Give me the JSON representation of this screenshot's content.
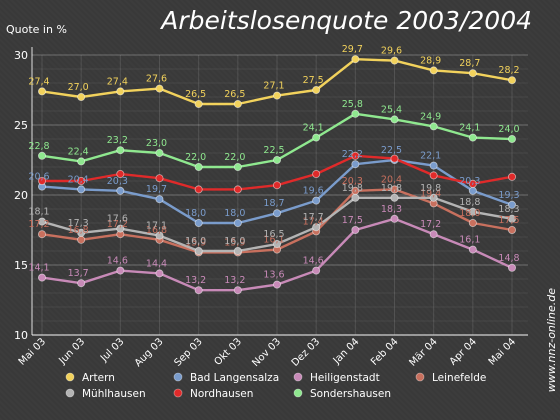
{
  "chart_data": {
    "type": "line",
    "title": "Arbeitslosenquote 2003/2004",
    "ylabel": "Quote in %",
    "ylim": [
      10,
      30
    ],
    "yticks": [
      "10",
      "15",
      "20",
      "25",
      "30"
    ],
    "grid": true,
    "legend_position": "bottom",
    "source": "www.nnz-online.de",
    "categories": [
      "Mai 03",
      "Jun 03",
      "Jul 03",
      "Aug 03",
      "Sep 03",
      "Okt 03",
      "Nov 03",
      "Dez 03",
      "Jan 04",
      "Feb 04",
      "Mär 04",
      "Apr 04",
      "Mai 04"
    ],
    "series": [
      {
        "name": "Artern",
        "color": "#f2d25c",
        "values": [
          27.4,
          27.0,
          27.4,
          27.6,
          26.5,
          26.5,
          27.1,
          27.5,
          29.7,
          29.6,
          28.9,
          28.7,
          28.2
        ],
        "labels": [
          "27,4",
          "27,0",
          "27,4",
          "27,6",
          "26,5",
          "26,5",
          "27,1",
          "27,5",
          "29,7",
          "29,6",
          "28,9",
          "28,7",
          "28,2"
        ]
      },
      {
        "name": "Bad Langensalza",
        "color": "#7a9ccc",
        "values": [
          20.6,
          20.4,
          20.3,
          19.7,
          18.0,
          18.0,
          18.7,
          19.6,
          22.2,
          22.5,
          22.1,
          20.3,
          19.3
        ],
        "labels": [
          "20,6",
          "20,4",
          "20,3",
          "19,7",
          "18,0",
          "18,0",
          "18,7",
          "19,6",
          "22,2",
          "22,5",
          "22,1",
          "20,3",
          "19,3"
        ]
      },
      {
        "name": "Heiligenstadt",
        "color": "#c88ab8",
        "values": [
          14.1,
          13.7,
          14.6,
          14.4,
          13.2,
          13.2,
          13.6,
          14.6,
          17.5,
          18.3,
          17.2,
          16.1,
          14.8
        ],
        "labels": [
          "14,1",
          "13,7",
          "14,6",
          "14,4",
          "13,2",
          "13,2",
          "13,6",
          "14,6",
          "17,5",
          "18,3",
          "17,2",
          "16,1",
          "14,8"
        ]
      },
      {
        "name": "Leinefelde",
        "color": "#c8705e",
        "values": [
          17.2,
          16.8,
          17.2,
          16.8,
          15.9,
          15.9,
          16.1,
          17.4,
          20.3,
          20.4,
          19.4,
          18.0,
          17.5
        ],
        "labels": [
          "17,2",
          "16,8",
          "17,2",
          "16,8",
          "15,9",
          "15,9",
          "16,1",
          "17,4",
          "20,3",
          "20,4",
          "19,4",
          "18,0",
          "17,5"
        ]
      },
      {
        "name": "Mühlhausen",
        "color": "#b4b4b4",
        "values": [
          18.1,
          17.3,
          17.6,
          17.1,
          16.0,
          16.0,
          16.5,
          17.7,
          19.8,
          19.8,
          19.8,
          18.8,
          18.3
        ],
        "labels": [
          "18,1",
          "17,3",
          "17,6",
          "17,1",
          "16,0",
          "16,0",
          "16,5",
          "17,7",
          "19,8",
          "19,8",
          "19,8",
          "18,8",
          "18,3"
        ]
      },
      {
        "name": "Nordhausen",
        "color": "#e02a2a",
        "values": [
          21.0,
          21.0,
          21.5,
          21.2,
          20.4,
          20.4,
          20.7,
          21.5,
          22.8,
          22.6,
          21.4,
          20.8,
          21.3
        ],
        "labels": [
          "",
          "",
          "",
          "",
          "",
          "",
          "",
          "",
          "",
          "",
          "",
          "",
          ""
        ]
      },
      {
        "name": "Sondershausen",
        "color": "#8fe88f",
        "values": [
          22.8,
          22.4,
          23.2,
          23.0,
          22.0,
          22.0,
          22.5,
          24.1,
          25.8,
          25.4,
          24.9,
          24.1,
          24.0
        ],
        "labels": [
          "22,8",
          "22,4",
          "23,2",
          "23,0",
          "22,0",
          "22,0",
          "22,5",
          "24,1",
          "25,8",
          "25,4",
          "24,9",
          "24,1",
          "24,0"
        ]
      }
    ]
  }
}
